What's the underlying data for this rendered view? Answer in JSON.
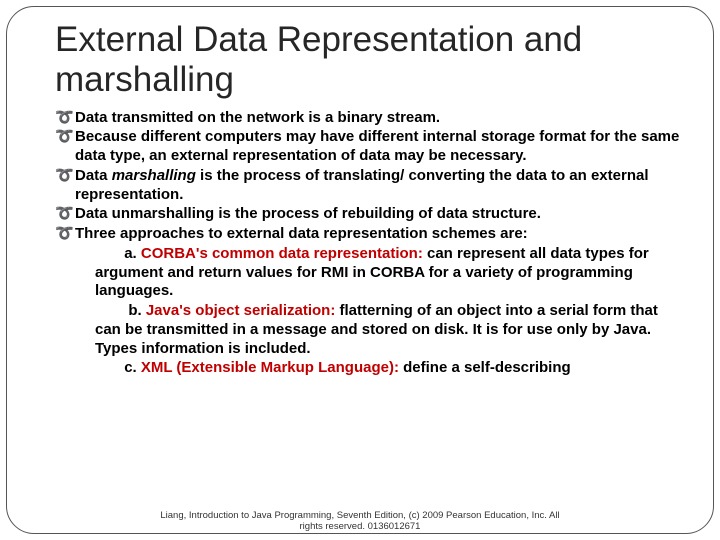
{
  "title": "External Data Representation and marshalling",
  "bullets": {
    "b1": "Data transmitted on the network is a binary stream.",
    "b2": "Because different computers may have different internal storage format for the same data type, an external representation of data may be necessary.",
    "b3a": "Data ",
    "b3b": "marshalling",
    "b3c": " is the process of translating/ converting the data to an external representation.",
    "b4": "Data unmarshalling is the process of rebuilding of data structure.",
    "b5": "Three approaches to external data representation schemes are:",
    "s1a": "a. ",
    "s1b": "CORBA's common data representation:",
    "s1c": " can represent all data types for argument and return values for RMI in CORBA for a variety of programming languages.",
    "s2a": "b. ",
    "s2b": "Java's object serialization:",
    "s2c": " flatterning of an object into a serial form that can be transmitted in a message and stored on disk. It is for use only by Java.  Types information is included.",
    "s3a": "c. ",
    "s3b": "XML (Extensible Markup Language):",
    "s3c": " define a self-describing"
  },
  "footer": {
    "l1": "Liang, Introduction to Java Programming, Seventh Edition, (c) 2009 Pearson Education, Inc. All",
    "l2": "rights reserved. 0136012671"
  },
  "colors": {
    "title": "#262626",
    "text": "#000000",
    "accent": "#c00000",
    "border": "#555555",
    "background": "#ffffff"
  },
  "typography": {
    "title_fontsize": 35,
    "body_fontsize": 15,
    "footer_fontsize": 9.5,
    "font_family": "Arial"
  }
}
